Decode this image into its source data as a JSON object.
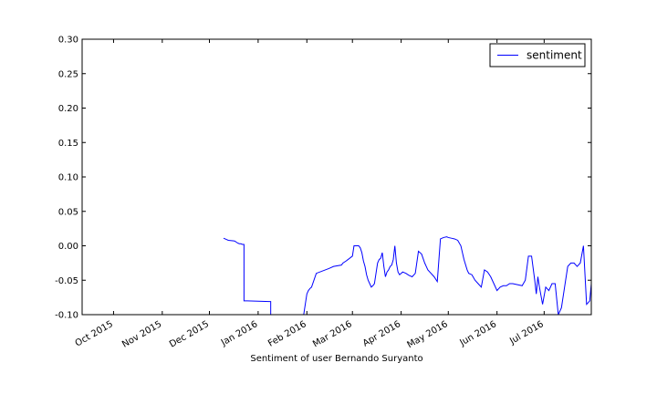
{
  "chart_data": {
    "type": "line",
    "title": "",
    "xlabel": "Sentiment of user Bernando Suryanto",
    "ylabel": "",
    "xlim": [
      "2015-09-11",
      "2016-07-31"
    ],
    "ylim": [
      -0.1,
      0.3
    ],
    "yticks": [
      -0.1,
      -0.05,
      0.0,
      0.05,
      0.1,
      0.15,
      0.2,
      0.25,
      0.3
    ],
    "ytick_labels": [
      "-0.10",
      "-0.05",
      "0.00",
      "0.05",
      "0.10",
      "0.15",
      "0.20",
      "0.25",
      "0.30"
    ],
    "xticks": [
      "2015-10-01",
      "2015-11-01",
      "2015-12-01",
      "2016-01-01",
      "2016-02-01",
      "2016-03-01",
      "2016-04-01",
      "2016-05-01",
      "2016-06-01",
      "2016-07-01"
    ],
    "xtick_labels": [
      "Oct 2015",
      "Nov 2015",
      "Dec 2015",
      "Jan 2016",
      "Feb 2016",
      "Mar 2016",
      "Apr 2016",
      "May 2016",
      "Jun 2016",
      "Jul 2016"
    ],
    "grid": false,
    "legend_position": "top-right",
    "series": [
      {
        "name": "sentiment",
        "color": "#0000ff",
        "x": [
          "2015-12-10",
          "2015-12-11",
          "2015-12-12",
          "2015-12-13",
          "2015-12-17",
          "2015-12-19",
          "2015-12-20",
          "2015-12-21",
          "2015-12-22",
          "2015-12-23",
          "2015-12-23",
          "2015-12-25",
          "2016-01-08",
          "2016-01-09",
          "2016-01-09",
          "2016-01-30",
          "2016-02-01",
          "2016-02-02",
          "2016-02-03",
          "2016-02-04",
          "2016-02-07",
          "2016-02-15",
          "2016-02-18",
          "2016-02-23",
          "2016-02-24",
          "2016-02-26",
          "2016-03-01",
          "2016-03-02",
          "2016-03-03",
          "2016-03-04",
          "2016-03-05",
          "2016-03-06",
          "2016-03-07",
          "2016-03-08",
          "2016-03-09",
          "2016-03-10",
          "2016-03-11",
          "2016-03-12",
          "2016-03-13",
          "2016-03-14",
          "2016-03-15",
          "2016-03-16",
          "2016-03-17",
          "2016-03-18",
          "2016-03-19",
          "2016-03-20",
          "2016-03-21",
          "2016-03-22",
          "2016-03-23",
          "2016-03-24",
          "2016-03-25",
          "2016-03-26",
          "2016-03-27",
          "2016-03-28",
          "2016-03-29",
          "2016-03-30",
          "2016-03-31",
          "2016-04-02",
          "2016-04-04",
          "2016-04-06",
          "2016-04-08",
          "2016-04-10",
          "2016-04-12",
          "2016-04-14",
          "2016-04-16",
          "2016-04-17",
          "2016-04-18",
          "2016-04-20",
          "2016-04-22",
          "2016-04-24",
          "2016-04-26",
          "2016-04-28",
          "2016-04-30",
          "2016-05-01",
          "2016-05-03",
          "2016-05-05",
          "2016-05-07",
          "2016-05-09",
          "2016-05-11",
          "2016-05-13",
          "2016-05-14",
          "2016-05-16",
          "2016-05-18",
          "2016-05-20",
          "2016-05-22",
          "2016-05-24",
          "2016-05-26",
          "2016-05-28",
          "2016-05-30",
          "2016-06-01",
          "2016-06-03",
          "2016-06-05",
          "2016-06-07",
          "2016-06-09",
          "2016-06-11",
          "2016-06-13",
          "2016-06-15",
          "2016-06-17",
          "2016-06-19",
          "2016-06-21",
          "2016-06-23",
          "2016-06-25",
          "2016-06-26",
          "2016-06-27",
          "2016-06-28",
          "2016-06-30",
          "2016-07-02",
          "2016-07-04",
          "2016-07-06",
          "2016-07-08",
          "2016-07-10",
          "2016-07-12",
          "2016-07-14",
          "2016-07-16",
          "2016-07-18",
          "2016-07-20",
          "2016-07-22",
          "2016-07-24",
          "2016-07-26",
          "2016-07-28",
          "2016-07-30",
          "2016-07-31"
        ],
        "y": [
          0.011,
          0.01,
          0.009,
          0.008,
          0.007,
          0.004,
          0.003,
          0.003,
          0.002,
          0.002,
          -0.08,
          -0.08,
          -0.081,
          -0.081,
          -0.1,
          -0.1,
          -0.07,
          -0.065,
          -0.062,
          -0.06,
          -0.04,
          -0.033,
          -0.03,
          -0.028,
          -0.025,
          -0.022,
          -0.015,
          0.0,
          0.0,
          0.0,
          0.0,
          -0.003,
          -0.01,
          -0.022,
          -0.03,
          -0.042,
          -0.05,
          -0.055,
          -0.06,
          -0.058,
          -0.055,
          -0.04,
          -0.025,
          -0.02,
          -0.018,
          -0.01,
          -0.03,
          -0.045,
          -0.038,
          -0.035,
          -0.03,
          -0.028,
          -0.02,
          0.0,
          -0.025,
          -0.038,
          -0.042,
          -0.038,
          -0.04,
          -0.043,
          -0.045,
          -0.04,
          -0.008,
          -0.012,
          -0.025,
          -0.03,
          -0.035,
          -0.04,
          -0.045,
          -0.052,
          0.01,
          0.012,
          0.013,
          0.012,
          0.011,
          0.01,
          0.008,
          0.0,
          -0.02,
          -0.035,
          -0.04,
          -0.042,
          -0.05,
          -0.055,
          -0.06,
          -0.035,
          -0.038,
          -0.045,
          -0.055,
          -0.065,
          -0.06,
          -0.058,
          -0.058,
          -0.055,
          -0.055,
          -0.056,
          -0.057,
          -0.058,
          -0.05,
          -0.015,
          -0.015,
          -0.05,
          -0.07,
          -0.045,
          -0.06,
          -0.085,
          -0.06,
          -0.065,
          -0.055,
          -0.055,
          -0.1,
          -0.09,
          -0.06,
          -0.03,
          -0.025,
          -0.025,
          -0.03,
          -0.025,
          0.0,
          -0.085,
          -0.08,
          -0.055
        ]
      }
    ]
  }
}
